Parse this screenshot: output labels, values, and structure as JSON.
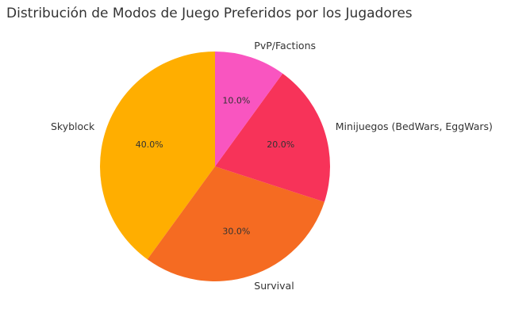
{
  "chart_data": {
    "type": "pie",
    "title": "Distribución de Modos de Juego Preferidos por los Jugadores",
    "start_angle_deg": 90,
    "direction": "counterclockwise",
    "slices": [
      {
        "label": "Skyblock",
        "value": 40.0,
        "pct_label": "40.0%",
        "color": "#ffae00"
      },
      {
        "label": "Survival",
        "value": 30.0,
        "pct_label": "30.0%",
        "color": "#f56b22"
      },
      {
        "label": "Minijuegos (BedWars, EggWars)",
        "value": 20.0,
        "pct_label": "20.0%",
        "color": "#f73359"
      },
      {
        "label": "PvP/Factions",
        "value": 10.0,
        "pct_label": "10.0%",
        "color": "#f955c0"
      }
    ]
  }
}
